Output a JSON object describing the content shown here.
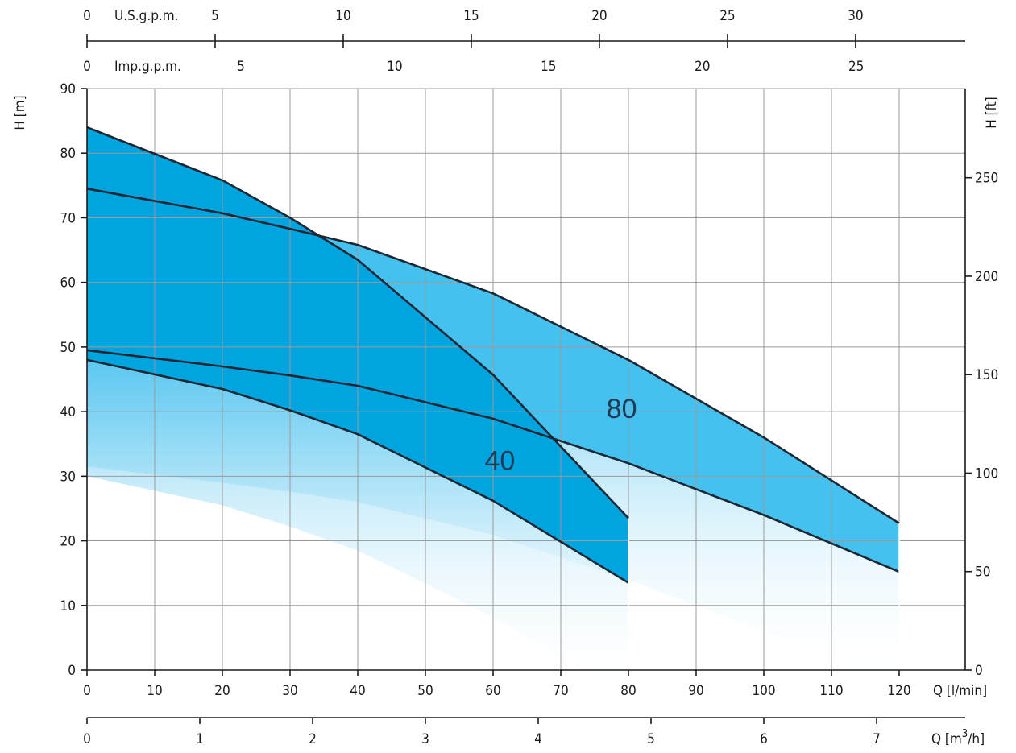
{
  "chart_data": {
    "type": "line",
    "subtype": "pump performance curves with shaded operating ranges",
    "x": {
      "label": "Q [l/min]",
      "range": [
        0,
        120
      ],
      "ticks": [
        0,
        10,
        20,
        30,
        40,
        50,
        60,
        70,
        80,
        90,
        100,
        110,
        120
      ]
    },
    "x_secondary_bottom": {
      "label": "Q [m3/h]",
      "label_parts": [
        "Q [m",
        "3",
        "/h]"
      ],
      "ticks": [
        0,
        1,
        2,
        3,
        4,
        5,
        6,
        7
      ]
    },
    "x_top_1": {
      "label": "U.S.g.p.m.",
      "ticks": [
        0,
        5,
        10,
        15,
        20,
        25,
        30
      ]
    },
    "x_top_2": {
      "label": "Imp.g.p.m.",
      "ticks": [
        0,
        5,
        10,
        15,
        20,
        25
      ]
    },
    "y": {
      "label": "H [m]",
      "range": [
        0,
        90
      ],
      "ticks": [
        0,
        10,
        20,
        30,
        40,
        50,
        60,
        70,
        80,
        90
      ]
    },
    "y_secondary_right": {
      "label": "H [ft]",
      "ticks": [
        0,
        50,
        100,
        150,
        200,
        250
      ]
    },
    "grid": true,
    "colors": {
      "band_80": "#44c1ef",
      "band_40": "#00a4df",
      "line": "#1c2733",
      "axis": "#1a1a1a",
      "grid": "#9a9a9a"
    },
    "series": [
      {
        "name": "40",
        "max_curve": {
          "x": [
            0,
            20,
            30,
            40,
            60,
            80
          ],
          "y": [
            84,
            75.8,
            70,
            63.5,
            45.7,
            23.5
          ]
        },
        "min_curve": {
          "x": [
            0,
            20,
            30,
            40,
            60,
            80
          ],
          "y": [
            48,
            43.5,
            40.2,
            36.5,
            26.2,
            13.5
          ]
        }
      },
      {
        "name": "80",
        "max_curve": {
          "x": [
            0,
            20,
            30,
            40,
            60,
            80,
            100,
            120
          ],
          "y": [
            74.5,
            70.7,
            68.3,
            65.8,
            58.3,
            48,
            36,
            22.7
          ]
        },
        "min_curve": {
          "x": [
            0,
            20,
            30,
            40,
            60,
            80,
            100,
            120
          ],
          "y": [
            49.5,
            47,
            45.6,
            44,
            38.9,
            32,
            24,
            15.2
          ]
        }
      }
    ],
    "annotations": [
      {
        "text": "80",
        "x": 79,
        "y": 40.5
      },
      {
        "text": "40",
        "x": 61,
        "y": 32.5
      }
    ]
  }
}
